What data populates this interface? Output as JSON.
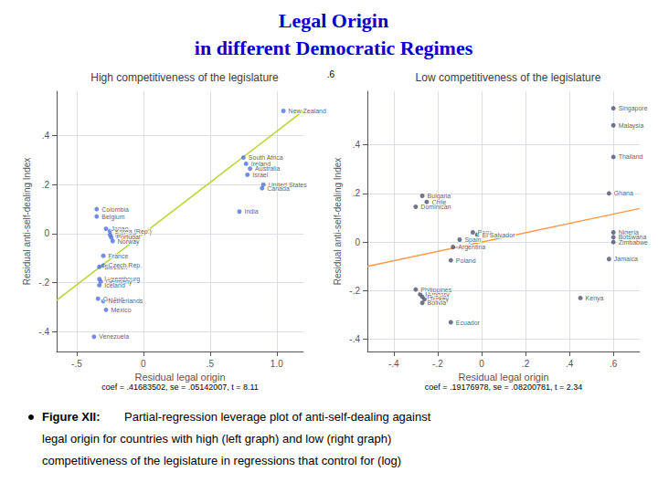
{
  "title": "Legal Origin",
  "subtitle": "in different Democratic Regimes",
  "caption": [
    "Figure XII:",
    "Partial-regression leverage plot of anti-self-dealing against",
    "legal origin for countries with high (left graph) and low (right graph)",
    "competitiveness of the legislature in regressions that control for (log)"
  ],
  "annotations": [
    ".6"
  ],
  "chart_data": [
    {
      "type": "scatter",
      "title": "High competitiveness of the legislature",
      "xlabel": "Residual legal origin",
      "ylabel": "Residual anti-self-dealing Index",
      "annotations": [
        "coef = .41683502, se = .05142007, t = 8.11"
      ],
      "xlim": [
        -0.65,
        1.2
      ],
      "ylim": [
        -0.48,
        0.58
      ],
      "xticks": [
        {
          "value": -0.5,
          "label": "-.5"
        },
        0,
        {
          "value": 0.5,
          "label": ".5"
        },
        {
          "value": 1.0,
          "label": "1.0"
        }
      ],
      "yticks": [
        {
          "value": -0.4,
          "label": "-.4"
        },
        {
          "value": -0.2,
          "label": "-.2"
        },
        0,
        {
          "value": 0.2,
          "label": ".2"
        },
        {
          "value": 0.4,
          "label": ".4"
        }
      ],
      "grid": true,
      "series": [
        {
          "type": "scatter",
          "x": [
            -0.35,
            -0.35,
            -0.28,
            -0.25,
            -0.25,
            -0.24,
            -0.23,
            -0.3,
            -0.33,
            -0.3,
            -0.33,
            -0.32,
            -0.33,
            -0.34,
            -0.3,
            -0.28,
            -0.37,
            0.75,
            0.77,
            0.8,
            0.78,
            0.9,
            0.89,
            0.72,
            1.05
          ],
          "values": [
            0.1,
            0.07,
            0.02,
            0.01,
            -0.005,
            -0.015,
            -0.03,
            -0.09,
            -0.135,
            -0.13,
            -0.185,
            -0.195,
            -0.21,
            -0.265,
            -0.275,
            -0.31,
            -0.42,
            0.31,
            0.285,
            0.265,
            0.24,
            0.2,
            0.185,
            0.09,
            0.5
          ],
          "labels": [
            "Colombia",
            "Belgium",
            "Japan",
            "Korea (Rep.)",
            "Finland",
            "Portugal",
            "Norway",
            "France",
            "Sweden",
            "Czech Rep.",
            "Luxembourg",
            "Germany",
            "Iceland",
            "Greece",
            "Netherlands",
            "Mexico",
            "Venezuela",
            "South Africa",
            "Ireland",
            "Australia",
            "Israel",
            "United States",
            "Canada",
            "India",
            "New Zealand"
          ]
        },
        {
          "type": "line",
          "x": [
            -0.65,
            1.2
          ],
          "values": [
            -0.270942763,
            0.500202024
          ]
        }
      ]
    },
    {
      "type": "scatter",
      "title": "Low competitiveness of the legislature",
      "xlabel": "Residual legal origin",
      "ylabel": "Residual anti-self-dealing Index",
      "annotations": [
        "coef = .19176978, se = .08200781, t = 2.34"
      ],
      "xlim": [
        -0.52,
        0.72
      ],
      "ylim": [
        -0.45,
        0.62
      ],
      "xticks": [
        {
          "value": -0.4,
          "label": "-.4"
        },
        {
          "value": -0.2,
          "label": "-.2"
        },
        0,
        {
          "value": 0.2,
          "label": ".2"
        },
        {
          "value": 0.4,
          "label": ".4"
        },
        {
          "value": 0.6,
          "label": ".6"
        }
      ],
      "yticks": [
        {
          "value": -0.4,
          "label": "-.4"
        },
        {
          "value": -0.2,
          "label": "-.2"
        },
        0,
        {
          "value": 0.2,
          "label": ".2"
        },
        {
          "value": 0.4,
          "label": ".4"
        }
      ],
      "grid": true,
      "series": [
        {
          "type": "scatter",
          "x": [
            -0.27,
            -0.25,
            -0.3,
            -0.04,
            -0.02,
            -0.1,
            -0.13,
            -0.14,
            -0.3,
            -0.28,
            -0.27,
            -0.26,
            -0.27,
            -0.14,
            0.6,
            0.6,
            0.6,
            0.58,
            0.6,
            0.6,
            0.6,
            0.58,
            0.45
          ],
          "values": [
            0.19,
            0.165,
            0.145,
            0.04,
            0.03,
            0.01,
            -0.02,
            -0.075,
            -0.195,
            -0.215,
            -0.225,
            -0.235,
            -0.25,
            -0.33,
            0.55,
            0.48,
            0.35,
            0.2,
            0.04,
            0.02,
            0.0,
            -0.07,
            -0.23
          ],
          "labels": [
            "Bulgaria",
            "Chile",
            "Dominican",
            "Peru",
            "El Salvador",
            "Spain",
            "Argentina",
            "Poland",
            "Philippines",
            "Hungary",
            "Russia",
            "Turkey",
            "Bolivia",
            "Ecuador",
            "Singapore",
            "Malaysia",
            "Thailand",
            "Ghana",
            "Nigeria",
            "Botswana",
            "Zimbabwe",
            "Jamaica",
            "Kenya"
          ]
        },
        {
          "type": "line",
          "x": [
            -0.52,
            0.72
          ],
          "values": [
            -0.0997202856,
            0.1380742416
          ]
        }
      ]
    }
  ]
}
